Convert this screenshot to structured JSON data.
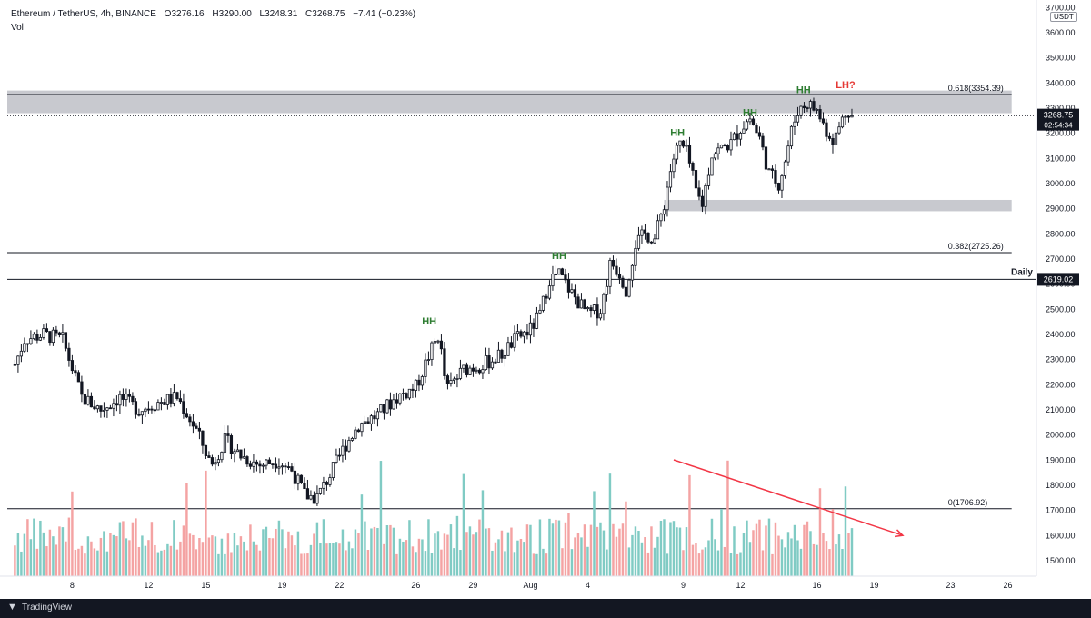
{
  "header": {
    "symbol": "Ethereum / TetherUS, 4h, BINANCE",
    "open": "O3276.16",
    "high": "H3290.00",
    "low": "L3248.31",
    "close": "C3268.75",
    "change": "−7.41 (−0.23%)",
    "vol_label": "Vol"
  },
  "footer": {
    "brand": "TradingView"
  },
  "price_axis": {
    "currency": "USDT",
    "last_price": "3268.75",
    "countdown": "02:54:34",
    "daily_price": "2619.02"
  },
  "chart_data": {
    "type": "candlestick",
    "y_ticks": [
      1500,
      1600,
      1700,
      1800,
      1900,
      2000,
      2100,
      2200,
      2300,
      2400,
      2500,
      2600,
      2700,
      2800,
      2900,
      3000,
      3100,
      3200,
      3300,
      3400,
      3500,
      3600,
      3700
    ],
    "y_tick_labels": [
      "1500.00",
      "1600.00",
      "1700.00",
      "1800.00",
      "1900.00",
      "2000.00",
      "2100.00",
      "2200.00",
      "2300.00",
      "2400.00",
      "2500.00",
      "2600.00",
      "2700.00",
      "2800.00",
      "2900.00",
      "3000.00",
      "3100.00",
      "3200.00",
      "3300.00",
      "3400.00",
      "3500.00",
      "3600.00",
      "3700.00"
    ],
    "x_ticks": [
      {
        "label": "8",
        "day": 8
      },
      {
        "label": "12",
        "day": 12
      },
      {
        "label": "15",
        "day": 15
      },
      {
        "label": "19",
        "day": 19
      },
      {
        "label": "22",
        "day": 22
      },
      {
        "label": "26",
        "day": 26
      },
      {
        "label": "29",
        "day": 29
      },
      {
        "label": "Aug",
        "day": 32
      },
      {
        "label": "4",
        "day": 35
      },
      {
        "label": "9",
        "day": 40
      },
      {
        "label": "12",
        "day": 43
      },
      {
        "label": "16",
        "day": 47
      },
      {
        "label": "19",
        "day": 50
      },
      {
        "label": "23",
        "day": 54
      },
      {
        "label": "26",
        "day": 57
      }
    ],
    "price_path": [
      [
        5.0,
        2280
      ],
      [
        5.5,
        2380
      ],
      [
        6.5,
        2400
      ],
      [
        7.5,
        2380
      ],
      [
        8.5,
        2150
      ],
      [
        9.5,
        2100
      ],
      [
        10.5,
        2150
      ],
      [
        11.5,
        2100
      ],
      [
        12.5,
        2130
      ],
      [
        13.5,
        2150
      ],
      [
        14.5,
        2020
      ],
      [
        15.3,
        1880
      ],
      [
        16.0,
        1980
      ],
      [
        16.8,
        1920
      ],
      [
        17.8,
        1880
      ],
      [
        18.8,
        1900
      ],
      [
        19.5,
        1860
      ],
      [
        20.2,
        1760
      ],
      [
        20.8,
        1750
      ],
      [
        21.5,
        1840
      ],
      [
        22.3,
        1960
      ],
      [
        23.0,
        2040
      ],
      [
        24.0,
        2080
      ],
      [
        25.0,
        2150
      ],
      [
        26.0,
        2190
      ],
      [
        26.7,
        2320
      ],
      [
        27.2,
        2400
      ],
      [
        27.6,
        2180
      ],
      [
        28.5,
        2260
      ],
      [
        29.5,
        2280
      ],
      [
        30.5,
        2320
      ],
      [
        31.2,
        2380
      ],
      [
        32.0,
        2420
      ],
      [
        32.5,
        2480
      ],
      [
        33.0,
        2620
      ],
      [
        33.5,
        2640
      ],
      [
        34.2,
        2560
      ],
      [
        35.0,
        2480
      ],
      [
        35.7,
        2500
      ],
      [
        36.2,
        2690
      ],
      [
        36.7,
        2640
      ],
      [
        37.0,
        2580
      ],
      [
        37.5,
        2760
      ],
      [
        38.0,
        2800
      ],
      [
        38.5,
        2780
      ],
      [
        39.0,
        2920
      ],
      [
        39.4,
        3080
      ],
      [
        39.8,
        3160
      ],
      [
        40.2,
        3120
      ],
      [
        40.7,
        2960
      ],
      [
        41.0,
        2920
      ],
      [
        41.5,
        3120
      ],
      [
        42.0,
        3140
      ],
      [
        42.5,
        3160
      ],
      [
        43.0,
        3220
      ],
      [
        43.5,
        3260
      ],
      [
        44.0,
        3180
      ],
      [
        44.5,
        3040
      ],
      [
        45.0,
        3000
      ],
      [
        45.3,
        3080
      ],
      [
        45.7,
        3220
      ],
      [
        46.0,
        3290
      ],
      [
        46.5,
        3320
      ],
      [
        47.0,
        3290
      ],
      [
        47.5,
        3210
      ],
      [
        47.9,
        3170
      ],
      [
        48.3,
        3250
      ],
      [
        48.6,
        3300
      ],
      [
        48.9,
        3269
      ]
    ],
    "volume_range": [
      0,
      100
    ],
    "annotations": [
      {
        "text": "HH",
        "x": 26.7,
        "price": 2440,
        "color": "#2e7d32"
      },
      {
        "text": "HH",
        "x": 33.5,
        "price": 2700,
        "color": "#2e7d32"
      },
      {
        "text": "HH",
        "x": 39.7,
        "price": 3190,
        "color": "#2e7d32"
      },
      {
        "text": "HH",
        "x": 43.5,
        "price": 3270,
        "color": "#2e7d32"
      },
      {
        "text": "HH",
        "x": 46.3,
        "price": 3360,
        "color": "#2e7d32"
      },
      {
        "text": "LH?",
        "x": 48.5,
        "price": 3380,
        "color": "#e53935"
      }
    ],
    "levels": [
      {
        "label": "0.618(3354.39)",
        "price": 3354.39
      },
      {
        "label": "0.382(2725.26)",
        "price": 2725.26
      },
      {
        "label": "0(1706.92)",
        "price": 1706.92
      }
    ],
    "daily_level": {
      "label": "Daily",
      "price": 2619.02
    },
    "zones": [
      {
        "from_price": 3280,
        "to_price": 3370,
        "x0": 4.6,
        "x1": 57.2
      },
      {
        "from_price": 2890,
        "to_price": 2935,
        "x0": 39.0,
        "x1": 57.2
      }
    ],
    "last_price": 3268.75,
    "volume_trendline": {
      "start": [
        39.5,
        80
      ],
      "end": [
        51.5,
        28
      ]
    },
    "colors": {
      "up": "#26a69a",
      "down": "#ef5350",
      "vol_up": "#80cbc4",
      "vol_down": "#f4a3a3",
      "zone": "#c8c9cf",
      "trend": "#f23645"
    }
  }
}
